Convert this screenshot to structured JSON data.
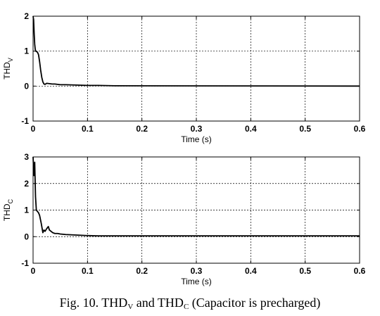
{
  "caption": {
    "prefix": "Fig. 10. THD",
    "sub1": "V",
    "middle": " and THD",
    "sub2": "C",
    "suffix": " (Capacitor is precharged)"
  },
  "chart_data": [
    {
      "type": "line",
      "ylabel_main": "THD",
      "ylabel_sub": "V",
      "xlabel": "Time (s)",
      "xlim": [
        0,
        0.6
      ],
      "ylim": [
        -1,
        2
      ],
      "xticks": [
        0,
        0.1,
        0.2,
        0.3,
        0.4,
        0.5,
        0.6
      ],
      "xtick_labels": [
        "0",
        "0.1",
        "0.2",
        "0.3",
        "0.4",
        "0.5",
        "0.6"
      ],
      "yticks": [
        -1,
        0,
        1,
        2
      ],
      "ytick_labels": [
        "-1",
        "0",
        "1",
        "2"
      ],
      "grid": true,
      "series": [
        {
          "x": [
            0,
            0.001,
            0.002,
            0.003,
            0.004,
            0.005,
            0.008,
            0.01,
            0.012,
            0.014,
            0.016,
            0.018,
            0.02,
            0.022,
            0.025,
            0.03,
            0.035,
            0.04,
            0.05,
            0.06,
            0.08,
            0.1,
            0.12,
            0.15,
            0.6
          ],
          "y": [
            2.0,
            1.9,
            1.5,
            1.2,
            1.05,
            1.0,
            0.97,
            0.9,
            0.7,
            0.45,
            0.25,
            0.12,
            0.06,
            0.05,
            0.08,
            0.07,
            0.06,
            0.06,
            0.04,
            0.04,
            0.03,
            0.02,
            0.02,
            0.01,
            0.0
          ]
        }
      ]
    },
    {
      "type": "line",
      "ylabel_main": "THD",
      "ylabel_sub": "C",
      "xlabel": "Time (s)",
      "xlim": [
        0,
        0.6
      ],
      "ylim": [
        -1,
        3
      ],
      "xticks": [
        0,
        0.1,
        0.2,
        0.3,
        0.4,
        0.5,
        0.6
      ],
      "xtick_labels": [
        "0",
        "0.1",
        "0.2",
        "0.3",
        "0.4",
        "0.5",
        "0.6"
      ],
      "yticks": [
        -1,
        0,
        1,
        2,
        3
      ],
      "ytick_labels": [
        "-1",
        "0",
        "1",
        "2",
        "3"
      ],
      "grid": true,
      "series": [
        {
          "x": [
            0,
            0.0015,
            0.003,
            0.0045,
            0.006,
            0.008,
            0.01,
            0.012,
            0.015,
            0.018,
            0.02,
            0.022,
            0.025,
            0.028,
            0.03,
            0.033,
            0.036,
            0.04,
            0.045,
            0.05,
            0.06,
            0.07,
            0.08,
            0.1,
            0.12,
            0.6
          ],
          "y": [
            3.0,
            2.3,
            2.8,
            1.5,
            1.0,
            0.95,
            0.9,
            0.8,
            0.5,
            0.15,
            0.25,
            0.2,
            0.3,
            0.38,
            0.25,
            0.2,
            0.15,
            0.12,
            0.12,
            0.1,
            0.08,
            0.07,
            0.06,
            0.04,
            0.03,
            0.03
          ]
        }
      ]
    }
  ]
}
